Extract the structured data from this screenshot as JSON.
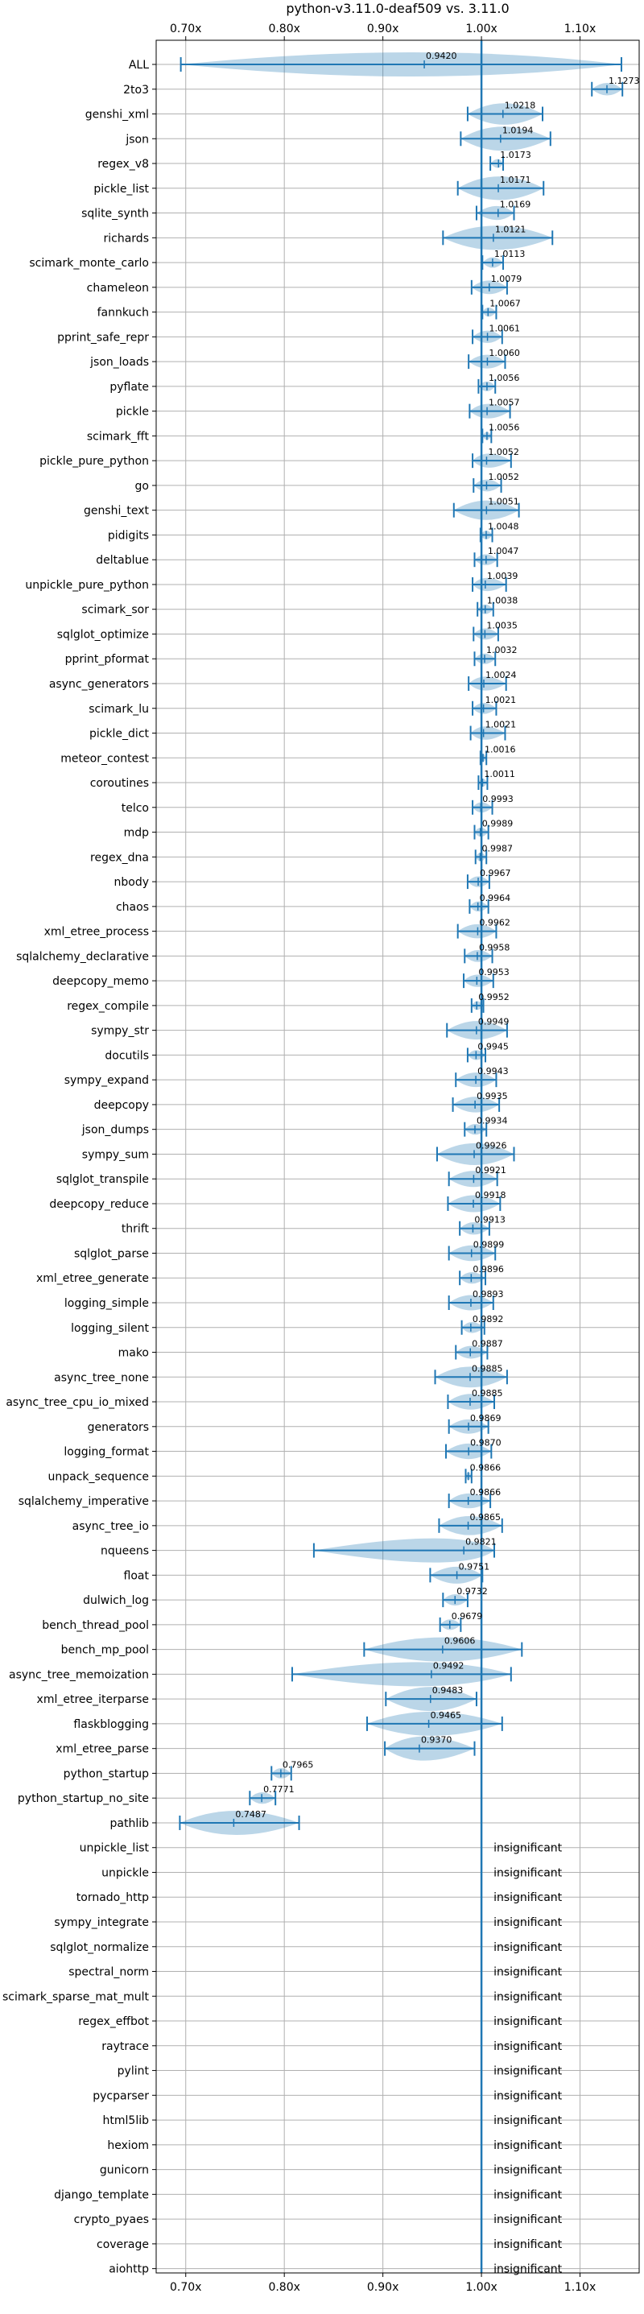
{
  "chart_data": {
    "type": "violin",
    "title": "python-v3.11.0-deaf509 vs. 3.11.0",
    "xlim": [
      0.67,
      1.16
    ],
    "x_ticks": [
      0.7,
      0.8,
      0.9,
      1.0,
      1.1
    ],
    "x_tick_labels": [
      "0.70x",
      "0.80x",
      "0.90x",
      "1.00x",
      "1.10x"
    ],
    "reference_line": 1.0,
    "grid": true,
    "insignificant_label": "insignificant",
    "colors": {
      "line": "#1f77b4",
      "violin": "#1f77b4",
      "grid": "#b0b0b0"
    },
    "benchmarks": [
      {
        "name": "ALL",
        "mean": 0.942,
        "label": "0.9420",
        "min": 0.695,
        "max": 1.142
      },
      {
        "name": "2to3",
        "mean": 1.1273,
        "label": "1.1273",
        "min": 1.112,
        "max": 1.143
      },
      {
        "name": "genshi_xml",
        "mean": 1.0218,
        "label": "1.0218",
        "min": 0.986,
        "max": 1.062
      },
      {
        "name": "json",
        "mean": 1.0194,
        "label": "1.0194",
        "min": 0.979,
        "max": 1.07
      },
      {
        "name": "regex_v8",
        "mean": 1.0173,
        "label": "1.0173",
        "min": 1.009,
        "max": 1.022
      },
      {
        "name": "pickle_list",
        "mean": 1.0171,
        "label": "1.0171",
        "min": 0.976,
        "max": 1.063
      },
      {
        "name": "sqlite_synth",
        "mean": 1.0169,
        "label": "1.0169",
        "min": 0.995,
        "max": 1.033
      },
      {
        "name": "richards",
        "mean": 1.0121,
        "label": "1.0121",
        "min": 0.961,
        "max": 1.072
      },
      {
        "name": "scimark_monte_carlo",
        "mean": 1.0113,
        "label": "1.0113",
        "min": 1.001,
        "max": 1.022
      },
      {
        "name": "chameleon",
        "mean": 1.0079,
        "label": "1.0079",
        "min": 0.99,
        "max": 1.026
      },
      {
        "name": "fannkuch",
        "mean": 1.0067,
        "label": "1.0067",
        "min": 1.001,
        "max": 1.015
      },
      {
        "name": "pprint_safe_repr",
        "mean": 1.0061,
        "label": "1.0061",
        "min": 0.991,
        "max": 1.021
      },
      {
        "name": "json_loads",
        "mean": 1.006,
        "label": "1.0060",
        "min": 0.987,
        "max": 1.024
      },
      {
        "name": "pyflate",
        "mean": 1.0056,
        "label": "1.0056",
        "min": 0.997,
        "max": 1.014
      },
      {
        "name": "pickle",
        "mean": 1.0057,
        "label": "1.0057",
        "min": 0.988,
        "max": 1.029
      },
      {
        "name": "scimark_fft",
        "mean": 1.0056,
        "label": "1.0056",
        "min": 1.001,
        "max": 1.01
      },
      {
        "name": "pickle_pure_python",
        "mean": 1.0052,
        "label": "1.0052",
        "min": 0.991,
        "max": 1.03
      },
      {
        "name": "go",
        "mean": 1.0052,
        "label": "1.0052",
        "min": 0.992,
        "max": 1.02
      },
      {
        "name": "genshi_text",
        "mean": 1.0051,
        "label": "1.0051",
        "min": 0.972,
        "max": 1.038
      },
      {
        "name": "pidigits",
        "mean": 1.0048,
        "label": "1.0048",
        "min": 0.999,
        "max": 1.011
      },
      {
        "name": "deltablue",
        "mean": 1.0047,
        "label": "1.0047",
        "min": 0.993,
        "max": 1.016
      },
      {
        "name": "unpickle_pure_python",
        "mean": 1.0039,
        "label": "1.0039",
        "min": 0.991,
        "max": 1.025
      },
      {
        "name": "scimark_sor",
        "mean": 1.0038,
        "label": "1.0038",
        "min": 0.996,
        "max": 1.012
      },
      {
        "name": "sqlglot_optimize",
        "mean": 1.0035,
        "label": "1.0035",
        "min": 0.992,
        "max": 1.017
      },
      {
        "name": "pprint_pformat",
        "mean": 1.0032,
        "label": "1.0032",
        "min": 0.993,
        "max": 1.014
      },
      {
        "name": "async_generators",
        "mean": 1.0024,
        "label": "1.0024",
        "min": 0.987,
        "max": 1.025
      },
      {
        "name": "scimark_lu",
        "mean": 1.0021,
        "label": "1.0021",
        "min": 0.991,
        "max": 1.015
      },
      {
        "name": "pickle_dict",
        "mean": 1.0021,
        "label": "1.0021",
        "min": 0.989,
        "max": 1.024
      },
      {
        "name": "meteor_contest",
        "mean": 1.0016,
        "label": "1.0016",
        "min": 0.999,
        "max": 1.005
      },
      {
        "name": "coroutines",
        "mean": 1.0011,
        "label": "1.0011",
        "min": 0.997,
        "max": 1.006
      },
      {
        "name": "telco",
        "mean": 0.9993,
        "label": "0.9993",
        "min": 0.991,
        "max": 1.011
      },
      {
        "name": "mdp",
        "mean": 0.9989,
        "label": "0.9989",
        "min": 0.993,
        "max": 1.007
      },
      {
        "name": "regex_dna",
        "mean": 0.9987,
        "label": "0.9987",
        "min": 0.994,
        "max": 1.005
      },
      {
        "name": "nbody",
        "mean": 0.9967,
        "label": "0.9967",
        "min": 0.986,
        "max": 1.008
      },
      {
        "name": "chaos",
        "mean": 0.9964,
        "label": "0.9964",
        "min": 0.988,
        "max": 1.007
      },
      {
        "name": "xml_etree_process",
        "mean": 0.9962,
        "label": "0.9962",
        "min": 0.976,
        "max": 1.015
      },
      {
        "name": "sqlalchemy_declarative",
        "mean": 0.9958,
        "label": "0.9958",
        "min": 0.983,
        "max": 1.011
      },
      {
        "name": "deepcopy_memo",
        "mean": 0.9953,
        "label": "0.9953",
        "min": 0.982,
        "max": 1.012
      },
      {
        "name": "regex_compile",
        "mean": 0.9952,
        "label": "0.9952",
        "min": 0.99,
        "max": 1.002
      },
      {
        "name": "sympy_str",
        "mean": 0.9949,
        "label": "0.9949",
        "min": 0.965,
        "max": 1.026
      },
      {
        "name": "docutils",
        "mean": 0.9945,
        "label": "0.9945",
        "min": 0.986,
        "max": 1.004
      },
      {
        "name": "sympy_expand",
        "mean": 0.9943,
        "label": "0.9943",
        "min": 0.974,
        "max": 1.015
      },
      {
        "name": "deepcopy",
        "mean": 0.9935,
        "label": "0.9935",
        "min": 0.971,
        "max": 1.018
      },
      {
        "name": "json_dumps",
        "mean": 0.9934,
        "label": "0.9934",
        "min": 0.983,
        "max": 1.005
      },
      {
        "name": "sympy_sum",
        "mean": 0.9926,
        "label": "0.9926",
        "min": 0.955,
        "max": 1.033
      },
      {
        "name": "sqlglot_transpile",
        "mean": 0.9921,
        "label": "0.9921",
        "min": 0.967,
        "max": 1.016
      },
      {
        "name": "deepcopy_reduce",
        "mean": 0.9918,
        "label": "0.9918",
        "min": 0.966,
        "max": 1.019
      },
      {
        "name": "thrift",
        "mean": 0.9913,
        "label": "0.9913",
        "min": 0.978,
        "max": 1.008
      },
      {
        "name": "sqlglot_parse",
        "mean": 0.9899,
        "label": "0.9899",
        "min": 0.967,
        "max": 1.014
      },
      {
        "name": "xml_etree_generate",
        "mean": 0.9896,
        "label": "0.9896",
        "min": 0.978,
        "max": 1.004
      },
      {
        "name": "logging_simple",
        "mean": 0.9893,
        "label": "0.9893",
        "min": 0.967,
        "max": 1.012
      },
      {
        "name": "logging_silent",
        "mean": 0.9892,
        "label": "0.9892",
        "min": 0.98,
        "max": 1.003
      },
      {
        "name": "mako",
        "mean": 0.9887,
        "label": "0.9887",
        "min": 0.974,
        "max": 1.006
      },
      {
        "name": "async_tree_none",
        "mean": 0.9885,
        "label": "0.9885",
        "min": 0.953,
        "max": 1.026
      },
      {
        "name": "async_tree_cpu_io_mixed",
        "mean": 0.9885,
        "label": "0.9885",
        "min": 0.966,
        "max": 1.013
      },
      {
        "name": "generators",
        "mean": 0.9869,
        "label": "0.9869",
        "min": 0.967,
        "max": 1.007
      },
      {
        "name": "logging_format",
        "mean": 0.987,
        "label": "0.9870",
        "min": 0.964,
        "max": 1.01
      },
      {
        "name": "unpack_sequence",
        "mean": 0.9866,
        "label": "0.9866",
        "min": 0.984,
        "max": 0.99
      },
      {
        "name": "sqlalchemy_imperative",
        "mean": 0.9866,
        "label": "0.9866",
        "min": 0.967,
        "max": 1.009
      },
      {
        "name": "async_tree_io",
        "mean": 0.9865,
        "label": "0.9865",
        "min": 0.957,
        "max": 1.021
      },
      {
        "name": "nqueens",
        "mean": 0.9821,
        "label": "0.9821",
        "min": 0.83,
        "max": 1.013
      },
      {
        "name": "float",
        "mean": 0.9751,
        "label": "0.9751",
        "min": 0.948,
        "max": 1.001
      },
      {
        "name": "dulwich_log",
        "mean": 0.9732,
        "label": "0.9732",
        "min": 0.961,
        "max": 0.986
      },
      {
        "name": "bench_thread_pool",
        "mean": 0.9679,
        "label": "0.9679",
        "min": 0.958,
        "max": 0.979
      },
      {
        "name": "bench_mp_pool",
        "mean": 0.9606,
        "label": "0.9606",
        "min": 0.881,
        "max": 1.041
      },
      {
        "name": "async_tree_memoization",
        "mean": 0.9492,
        "label": "0.9492",
        "min": 0.808,
        "max": 1.03
      },
      {
        "name": "xml_etree_iterparse",
        "mean": 0.9483,
        "label": "0.9483",
        "min": 0.903,
        "max": 0.995
      },
      {
        "name": "flaskblogging",
        "mean": 0.9465,
        "label": "0.9465",
        "min": 0.884,
        "max": 1.021
      },
      {
        "name": "xml_etree_parse",
        "mean": 0.937,
        "label": "0.9370",
        "min": 0.902,
        "max": 0.993
      },
      {
        "name": "python_startup",
        "mean": 0.7965,
        "label": "0.7965",
        "min": 0.787,
        "max": 0.807
      },
      {
        "name": "python_startup_no_site",
        "mean": 0.7771,
        "label": "0.7771",
        "min": 0.765,
        "max": 0.791
      },
      {
        "name": "pathlib",
        "mean": 0.7487,
        "label": "0.7487",
        "min": 0.694,
        "max": 0.815
      },
      {
        "name": "unpickle_list",
        "insignificant": true
      },
      {
        "name": "unpickle",
        "insignificant": true
      },
      {
        "name": "tornado_http",
        "insignificant": true
      },
      {
        "name": "sympy_integrate",
        "insignificant": true
      },
      {
        "name": "sqlglot_normalize",
        "insignificant": true
      },
      {
        "name": "spectral_norm",
        "insignificant": true
      },
      {
        "name": "scimark_sparse_mat_mult",
        "insignificant": true
      },
      {
        "name": "regex_effbot",
        "insignificant": true
      },
      {
        "name": "raytrace",
        "insignificant": true
      },
      {
        "name": "pylint",
        "insignificant": true
      },
      {
        "name": "pycparser",
        "insignificant": true
      },
      {
        "name": "html5lib",
        "insignificant": true
      },
      {
        "name": "hexiom",
        "insignificant": true
      },
      {
        "name": "gunicorn",
        "insignificant": true
      },
      {
        "name": "django_template",
        "insignificant": true
      },
      {
        "name": "crypto_pyaes",
        "insignificant": true
      },
      {
        "name": "coverage",
        "insignificant": true
      },
      {
        "name": "aiohttp",
        "insignificant": true
      }
    ]
  }
}
